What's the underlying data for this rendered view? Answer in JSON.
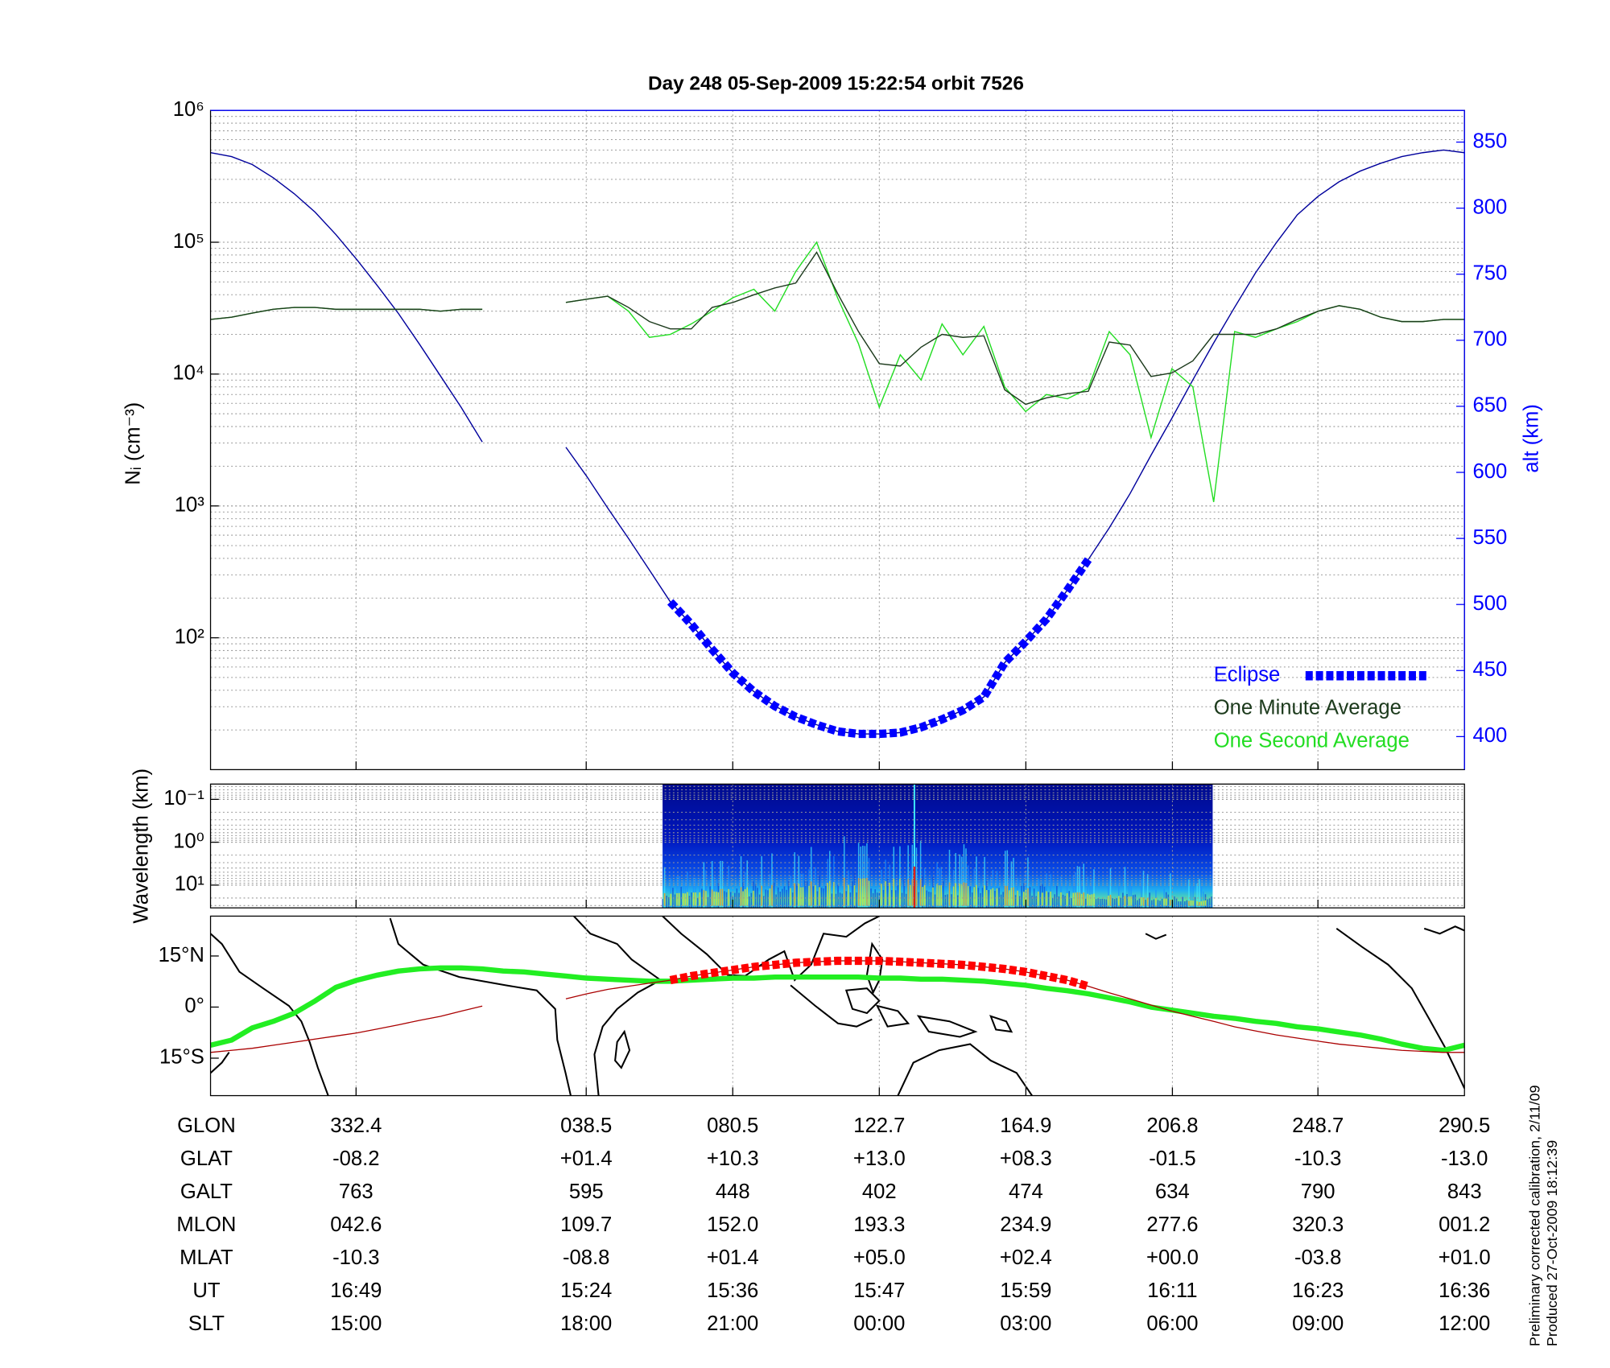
{
  "chart_data": [
    {
      "type": "line",
      "title": "Day 248  05-Sep-2009 15:22:54   orbit 7526",
      "ylabel": "Nᵢ (cm⁻³)",
      "y2label": "alt (km)",
      "yscale": "log",
      "ylim": [
        10,
        1000000
      ],
      "yticks": [
        {
          "value": 100,
          "label": "10²"
        },
        {
          "value": 1000,
          "label": "10³"
        },
        {
          "value": 10000,
          "label": "10⁴"
        },
        {
          "value": 100000,
          "label": "10⁵"
        },
        {
          "value": 1000000,
          "label": "10⁶"
        }
      ],
      "y2lim": [
        375,
        874
      ],
      "y2ticks": [
        400,
        450,
        500,
        550,
        600,
        650,
        700,
        750,
        800,
        850
      ],
      "grid": true,
      "legend": "lower right",
      "series": [
        {
          "color": "#00009c",
          "axis": "y2",
          "values": [
            842,
            839,
            833,
            823,
            811,
            797,
            780,
            761,
            741,
            720,
            697,
            673,
            649,
            623,
            null,
            null,
            null,
            619,
            597,
            573,
            550,
            526,
            502,
            485,
            466,
            448,
            434,
            423,
            415,
            409,
            404,
            402,
            402,
            403,
            407,
            413,
            420,
            430,
            456,
            472,
            489,
            511,
            534,
            558,
            584,
            613,
            641,
            670,
            698,
            725,
            751,
            774,
            795,
            809,
            820,
            828,
            834,
            839,
            842,
            844,
            842
          ]
        },
        {
          "name": "One Second Average",
          "color": "#22dd22",
          "values": [
            26000,
            27000,
            29000,
            31000,
            32000,
            32000,
            31000,
            31000,
            31000,
            31000,
            31000,
            30000,
            31000,
            31000,
            null,
            null,
            null,
            35000,
            37000,
            39000,
            30000,
            19000,
            20000,
            24000,
            30000,
            38000,
            44000,
            30000,
            60000,
            100000,
            38000,
            17000,
            5600,
            14000,
            9000,
            24000,
            14000,
            23000,
            8000,
            5200,
            7000,
            6500,
            7800,
            21000,
            14000,
            3300,
            11000,
            8000,
            1070,
            21000,
            19000,
            22000,
            25000,
            30000,
            33000,
            31000,
            27000,
            25000,
            25000,
            26000,
            26000
          ]
        },
        {
          "name": "One Minute Average",
          "color": "#1c3a1c",
          "values": [
            26000,
            27000,
            29000,
            31000,
            32000,
            32000,
            31000,
            31000,
            31000,
            31000,
            31000,
            30000,
            31000,
            31000,
            null,
            null,
            null,
            35000,
            37000,
            39000,
            32000,
            25000,
            22000,
            22000,
            32000,
            35000,
            40000,
            45000,
            49000,
            84000,
            41000,
            21000,
            12000,
            11500,
            16000,
            20000,
            19000,
            19500,
            7600,
            5900,
            6600,
            7100,
            7400,
            17500,
            16600,
            9600,
            10200,
            12600,
            20000,
            20000,
            20000,
            22000,
            26000,
            30000,
            33000,
            31000,
            27000,
            25000,
            25000,
            26000,
            26000
          ]
        },
        {
          "name": "Eclipse",
          "color": "#0000ff",
          "axis": "y2",
          "style": "dashed",
          "values": [
            null,
            null,
            null,
            null,
            null,
            null,
            null,
            null,
            null,
            null,
            null,
            null,
            null,
            null,
            null,
            null,
            null,
            null,
            null,
            null,
            null,
            null,
            502,
            485,
            466,
            448,
            434,
            423,
            415,
            409,
            404,
            402,
            402,
            403,
            407,
            413,
            420,
            430,
            456,
            472,
            489,
            511,
            534,
            null,
            null,
            null,
            null,
            null,
            null,
            null,
            null,
            null,
            null,
            null,
            null,
            null,
            null,
            null,
            null,
            null,
            null
          ]
        }
      ]
    },
    {
      "type": "spectrogram",
      "ylabel": "Wavelength (km)",
      "yscale": "log",
      "ylim": [
        34,
        0.044
      ],
      "yticks": [
        {
          "value": 0.1,
          "label": "10⁻¹"
        },
        {
          "value": 1,
          "label": "10⁰"
        },
        {
          "value": 10,
          "label": "10¹"
        }
      ],
      "grid": true
    },
    {
      "type": "map",
      "ylim": [
        -26,
        26.7
      ],
      "yticks": [
        {
          "value": 15,
          "label": "15°N"
        },
        {
          "value": 0,
          "label": "0°"
        },
        {
          "value": -15,
          "label": "15°S"
        }
      ],
      "eclipse_color": "#ff0000",
      "series": [
        {
          "color": "#22ee22",
          "linewidth": 5,
          "values": [
            -11.2,
            -9.7,
            -6.1,
            -4.2,
            -1.8,
            1.8,
            5.8,
            7.9,
            9.4,
            10.6,
            11.2,
            11.5,
            11.5,
            11.2,
            10.6,
            10.3,
            9.7,
            9.1,
            8.5,
            8.2,
            7.9,
            7.6,
            7.6,
            7.9,
            8.2,
            8.5,
            8.5,
            8.8,
            8.8,
            8.8,
            8.8,
            8.8,
            8.5,
            8.5,
            8.2,
            8.2,
            7.9,
            7.6,
            7.0,
            6.4,
            5.5,
            4.8,
            3.9,
            2.7,
            1.5,
            0.0,
            -0.9,
            -1.8,
            -2.7,
            -3.3,
            -4.2,
            -4.8,
            -5.8,
            -6.4,
            -7.3,
            -8.2,
            -9.4,
            -10.9,
            -12.1,
            -12.7,
            -11.2
          ]
        },
        {
          "color": "#aa0000",
          "linewidth": 1,
          "values": [
            -13.3,
            -12.7,
            -12.1,
            -11.2,
            -10.3,
            -9.4,
            -8.5,
            -7.6,
            -6.4,
            -5.2,
            -3.9,
            -2.7,
            -1.2,
            0.3,
            null,
            null,
            null,
            2.4,
            3.9,
            5.2,
            6.1,
            7.0,
            7.9,
            9.1,
            10.0,
            10.9,
            11.8,
            12.4,
            13.0,
            13.3,
            13.6,
            13.6,
            13.6,
            13.3,
            13.0,
            12.7,
            12.4,
            11.8,
            11.2,
            10.3,
            9.1,
            7.9,
            6.1,
            4.2,
            2.4,
            0.6,
            -1.2,
            -2.7,
            -4.2,
            -5.8,
            -7.0,
            -8.2,
            -9.1,
            -10.0,
            -10.9,
            -11.5,
            -12.1,
            -12.7,
            -13.0,
            -13.3,
            -13.3
          ]
        }
      ]
    }
  ],
  "table": {
    "row_labels": [
      "GLON",
      "GLAT",
      "GALT",
      "MLON",
      "MLAT",
      "UT",
      "SLT"
    ],
    "rows": [
      [
        "332.4",
        "038.5",
        "080.5",
        "122.7",
        "164.9",
        "206.8",
        "248.7",
        "290.5"
      ],
      [
        "-08.2",
        "+01.4",
        "+10.3",
        "+13.0",
        "+08.3",
        "-01.5",
        "-10.3",
        "-13.0"
      ],
      [
        "763",
        "595",
        "448",
        "402",
        "474",
        "634",
        "790",
        "843"
      ],
      [
        "042.6",
        "109.7",
        "152.0",
        "193.3",
        "234.9",
        "277.6",
        "320.3",
        "001.2"
      ],
      [
        "-10.3",
        "-08.8",
        "+01.4",
        "+05.0",
        "+02.4",
        "+00.0",
        "-03.8",
        "+01.0"
      ],
      [
        "16:49",
        "15:24",
        "15:36",
        "15:47",
        "15:59",
        "16:11",
        "16:23",
        "16:36"
      ],
      [
        "15:00",
        "18:00",
        "21:00",
        "00:00",
        "03:00",
        "06:00",
        "09:00",
        "12:00"
      ]
    ]
  },
  "footer_notes": [
    "Preliminary corrected calibration, 2/11/09",
    "Produced 27-Oct-2009 18:12:39"
  ]
}
